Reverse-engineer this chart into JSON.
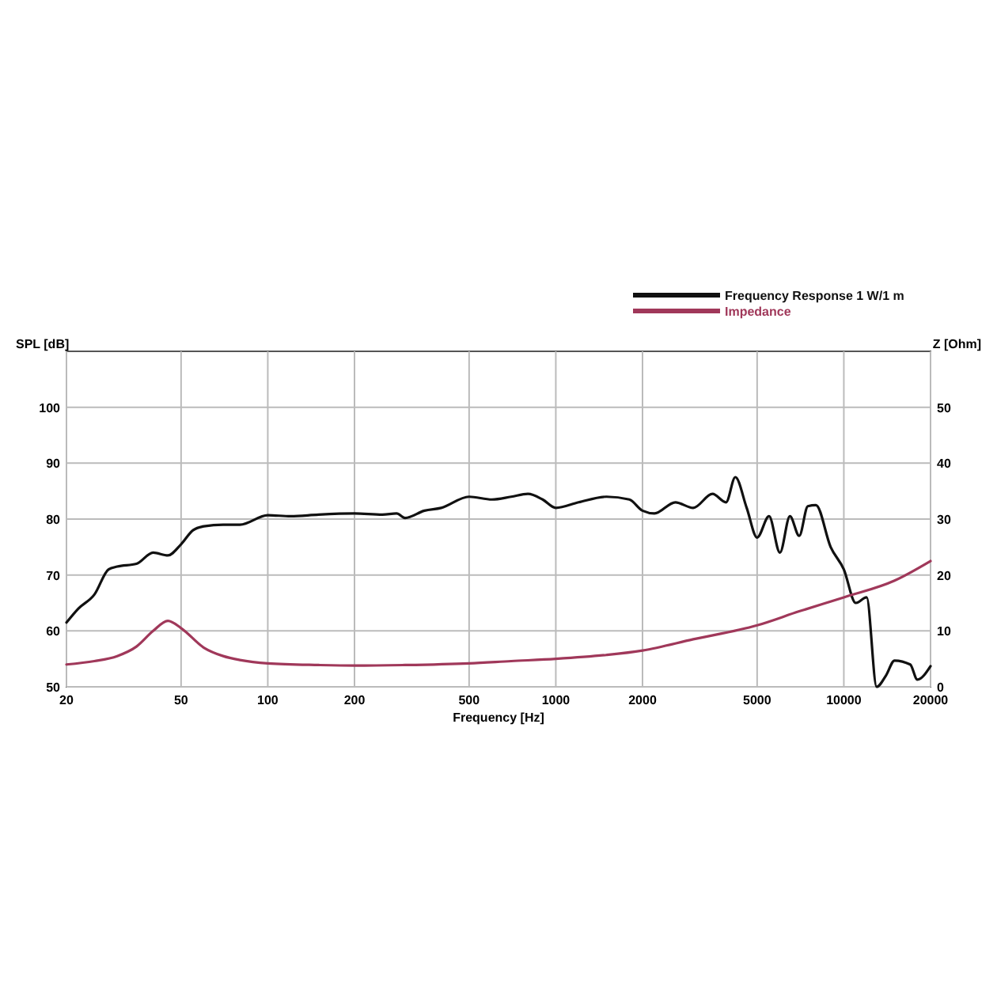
{
  "chart_data": {
    "type": "line",
    "xlabel": "Frequency [Hz]",
    "ylabel": "SPL [dB]",
    "y2label": "Z [Ohm]",
    "log": "x",
    "grid": true,
    "legend": "top right",
    "line_style": "solid",
    "marker": "none",
    "xlim": [
      20,
      20000
    ],
    "xticks": [
      20,
      50,
      100,
      200,
      500,
      1000,
      2000,
      5000,
      10000,
      20000
    ],
    "ylim": [
      50,
      110
    ],
    "yticks": [
      50,
      60,
      70,
      80,
      90,
      100
    ],
    "y2lim": [
      0,
      60
    ],
    "y2ticks": [
      0,
      10,
      20,
      30,
      40,
      50
    ],
    "series": [
      {
        "name": "Frequency Response 1 W/1 m",
        "color": "#111111",
        "x": [
          20,
          22,
          25,
          28,
          30,
          35,
          40,
          45,
          50,
          55,
          60,
          70,
          80,
          100,
          120,
          150,
          200,
          250,
          280,
          300,
          350,
          400,
          500,
          600,
          700,
          800,
          900,
          1000,
          1200,
          1500,
          1800,
          2000,
          2200,
          2600,
          3000,
          3500,
          3900,
          4200,
          4600,
          5000,
          5500,
          6000,
          6500,
          7000,
          7500,
          8000,
          9000,
          10000,
          11000,
          12000,
          13000,
          14000,
          15000,
          17000,
          18000,
          20000
        ],
        "values": [
          61.5,
          64,
          66.5,
          71,
          71.5,
          72,
          74,
          73.5,
          75.5,
          78,
          78.7,
          79,
          79,
          80.7,
          80.5,
          80.8,
          81,
          80.8,
          81,
          80.2,
          81.5,
          82,
          84,
          83.5,
          84,
          84.5,
          83.5,
          82,
          83,
          84,
          83.5,
          81.5,
          81,
          83,
          82,
          84.5,
          83,
          87.5,
          82,
          76.7,
          80.5,
          74,
          80.5,
          77,
          82.3,
          82.5,
          75,
          71,
          65,
          66,
          50,
          52,
          54.7,
          54,
          51.3,
          53.7
        ]
      },
      {
        "name": "Impedance",
        "color": "#a0385a",
        "axis": "y2",
        "x": [
          20,
          25,
          30,
          35,
          40,
          45,
          50,
          60,
          70,
          80,
          100,
          150,
          200,
          300,
          500,
          700,
          1000,
          1500,
          2000,
          3000,
          5000,
          7000,
          10000,
          15000,
          20000
        ],
        "values": [
          4,
          4.6,
          5.5,
          7.2,
          10,
          11.8,
          10.5,
          7,
          5.5,
          4.8,
          4.2,
          3.9,
          3.8,
          3.9,
          4.2,
          4.6,
          5,
          5.7,
          6.5,
          8.5,
          11,
          13.5,
          16,
          19,
          22.5
        ]
      }
    ]
  }
}
